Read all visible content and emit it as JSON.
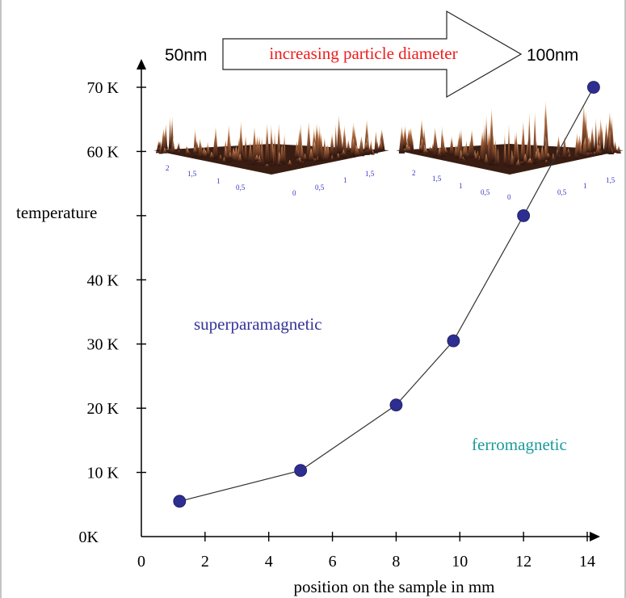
{
  "chart_data": {
    "type": "line",
    "title": "",
    "xlabel": "position on the sample in mm",
    "ylabel": "temperature",
    "xlim": [
      0,
      14.5
    ],
    "ylim": [
      0,
      75
    ],
    "x_ticks": [
      0,
      2,
      4,
      6,
      8,
      10,
      12,
      14
    ],
    "y_ticks": [
      {
        "value": 0,
        "label": "0K"
      },
      {
        "value": 10,
        "label": "10 K"
      },
      {
        "value": 20,
        "label": "20 K"
      },
      {
        "value": 30,
        "label": "30 K"
      },
      {
        "value": 40,
        "label": "40 K"
      },
      {
        "value": 50,
        "label": ""
      },
      {
        "value": 60,
        "label": "60 K"
      },
      {
        "value": 70,
        "label": "70 K"
      }
    ],
    "series": [
      {
        "x": [
          1.2,
          5.0,
          8.0,
          9.8,
          12.0,
          14.2
        ],
        "y": [
          5.5,
          10.3,
          20.5,
          30.5,
          50.0,
          70.0
        ]
      }
    ],
    "grid": false,
    "annotations": {
      "arrow_text": "increasing particle diameter",
      "left_size": "50nm",
      "right_size": "100nm",
      "region_superparamagnetic": "superparamagnetic",
      "region_ferromagnetic": "ferromagnetic"
    },
    "afm_images": [
      {
        "axis_labels": [
          "2",
          "1,5",
          "1",
          "0,5",
          "0",
          "0,5",
          "1",
          "1,5"
        ]
      },
      {
        "axis_labels": [
          "2",
          "1,5",
          "1",
          "0,5",
          "0",
          "0,5",
          "1",
          "1,5"
        ]
      }
    ],
    "colors": {
      "marker": "#2d2e8f",
      "line": "#333333",
      "arrow_text": "#ee1c1c",
      "superparamagnetic": "#34339a",
      "ferromagnetic": "#1b9b9b",
      "afm_labels": "#3535c8"
    }
  }
}
